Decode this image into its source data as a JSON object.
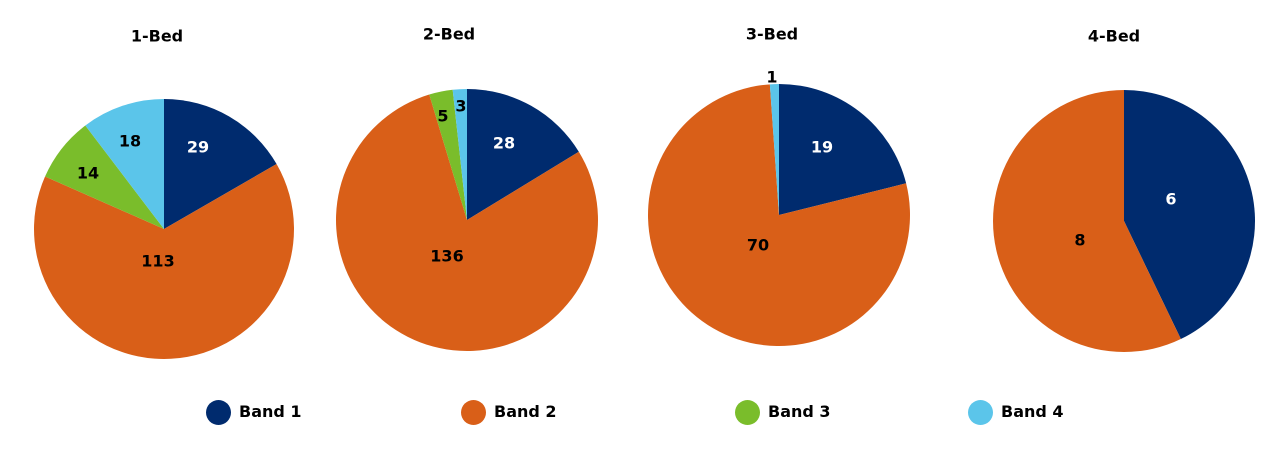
{
  "chart_data": {
    "type": "pie",
    "series_names": [
      "Band 1",
      "Band 2",
      "Band 3",
      "Band 4"
    ],
    "colors": [
      "#002b6e",
      "#d95f18",
      "#7abd2b",
      "#5bc5ea"
    ],
    "label_colors": [
      "#ffffff",
      "#000000",
      "#000000",
      "#000000"
    ],
    "legend_position": "bottom",
    "charts": [
      {
        "title": "1-Bed",
        "values": [
          29,
          113,
          14,
          18
        ]
      },
      {
        "title": "2-Bed",
        "values": [
          28,
          136,
          5,
          3
        ]
      },
      {
        "title": "3-Bed",
        "values": [
          19,
          70,
          0,
          1
        ]
      },
      {
        "title": "4-Bed",
        "values": [
          6,
          8,
          0,
          0
        ]
      }
    ]
  }
}
